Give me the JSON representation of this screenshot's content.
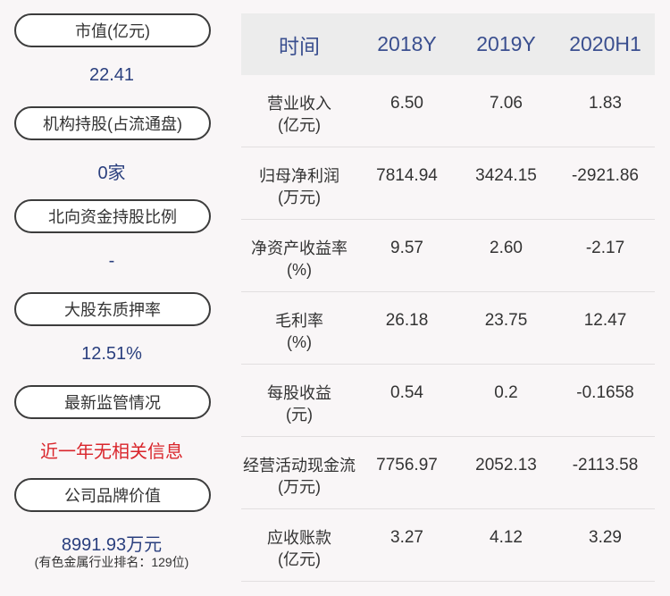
{
  "sidebar": {
    "items": [
      {
        "label": "市值(亿元)",
        "value": "22.41"
      },
      {
        "label": "机构持股(占流通盘)",
        "value": "0家"
      },
      {
        "label": "北向资金持股比例",
        "value": "-"
      },
      {
        "label": "大股东质押率",
        "value": "12.51%"
      },
      {
        "label": "最新监管情况",
        "value": "近一年无相关信息"
      },
      {
        "label": "公司品牌价值",
        "value": "8991.93万元",
        "note": "(有色金属行业排名：129位)"
      }
    ]
  },
  "table": {
    "headers": [
      "时间",
      "2018Y",
      "2019Y",
      "2020H1"
    ],
    "rows": [
      {
        "metric": "营业收入",
        "unit": "(亿元)",
        "values": [
          "6.50",
          "7.06",
          "1.83"
        ]
      },
      {
        "metric": "归母净利润",
        "unit": "(万元)",
        "values": [
          "7814.94",
          "3424.15",
          "-2921.86"
        ]
      },
      {
        "metric": "净资产收益率",
        "unit": "(%)",
        "values": [
          "9.57",
          "2.60",
          "-2.17"
        ]
      },
      {
        "metric": "毛利率",
        "unit": "(%)",
        "values": [
          "26.18",
          "23.75",
          "12.47"
        ]
      },
      {
        "metric": "每股收益",
        "unit": "(元)",
        "values": [
          "0.54",
          "0.2",
          "-0.1658"
        ]
      },
      {
        "metric": "经营活动现金流",
        "unit": "(万元)",
        "values": [
          "7756.97",
          "2052.13",
          "-2113.58"
        ]
      },
      {
        "metric": "应收账款",
        "unit": "(亿元)",
        "values": [
          "3.27",
          "4.12",
          "3.29"
        ]
      }
    ]
  }
}
